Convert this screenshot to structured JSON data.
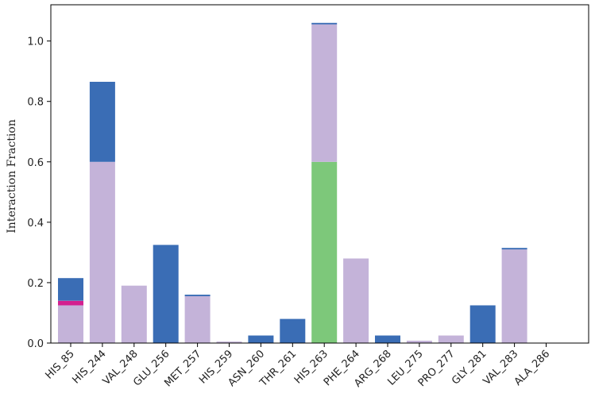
{
  "chart_data": {
    "type": "bar",
    "stacked": true,
    "title": "",
    "xlabel": "",
    "ylabel": "Interaction Fraction",
    "ylim": [
      0,
      1.12
    ],
    "yticks": [
      "0.0",
      "0.2",
      "0.4",
      "0.6",
      "0.8",
      "1.0"
    ],
    "grid": false,
    "categories": [
      "HIS_85",
      "HIS_244",
      "VAL_248",
      "GLU_256",
      "MET_257",
      "HIS_259",
      "ASN_260",
      "THR_261",
      "HIS_263",
      "PHE_264",
      "ARG_268",
      "LEU_275",
      "PRO_277",
      "GLY_281",
      "VAL_283",
      "ALA_286"
    ],
    "series": [
      {
        "color": "#7dc87a",
        "values": [
          0,
          0,
          0,
          0,
          0,
          0,
          0,
          0,
          0.6,
          0,
          0,
          0,
          0,
          0,
          0,
          0
        ]
      },
      {
        "color": "#c4b3d9",
        "values": [
          0.125,
          0.6,
          0.19,
          0,
          0.155,
          0.005,
          0,
          0,
          0.455,
          0.28,
          0,
          0.008,
          0.025,
          0,
          0.31,
          0
        ]
      },
      {
        "color": "#d4208f",
        "values": [
          0.015,
          0,
          0,
          0,
          0,
          0,
          0,
          0,
          0,
          0,
          0,
          0,
          0,
          0,
          0,
          0
        ]
      },
      {
        "color": "#3a6db5",
        "values": [
          0.075,
          0.265,
          0,
          0.325,
          0.005,
          0,
          0.025,
          0.08,
          0.005,
          0,
          0.025,
          0,
          0,
          0.125,
          0.005,
          0
        ]
      }
    ]
  }
}
